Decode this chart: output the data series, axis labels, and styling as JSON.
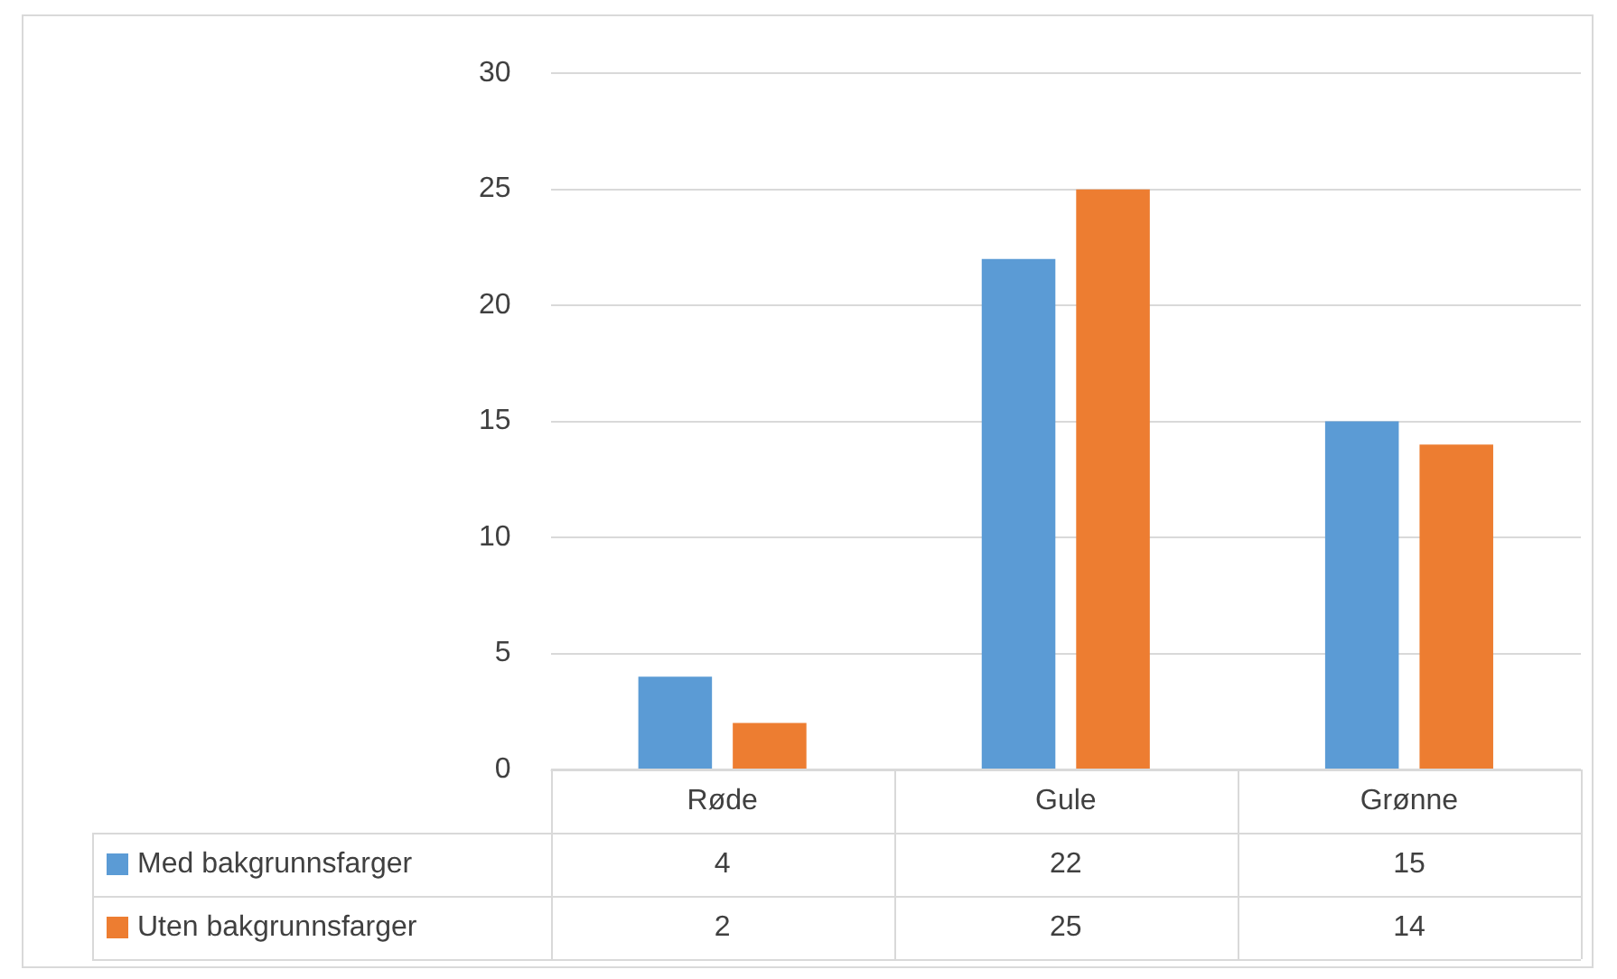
{
  "chart_data": {
    "type": "bar",
    "categories": [
      "Røde",
      "Gule",
      "Grønne"
    ],
    "series": [
      {
        "name": "Med bakgrunnsfarger",
        "color": "#5b9bd5",
        "values": [
          4,
          22,
          15
        ]
      },
      {
        "name": "Uten bakgrunnsfarger",
        "color": "#ed7d31",
        "values": [
          2,
          25,
          14
        ]
      }
    ],
    "ylim": [
      0,
      30
    ],
    "yticks": [
      0,
      5,
      10,
      15,
      20,
      25,
      30
    ],
    "grid": "y",
    "legend": "bottom",
    "data_labels": true
  }
}
